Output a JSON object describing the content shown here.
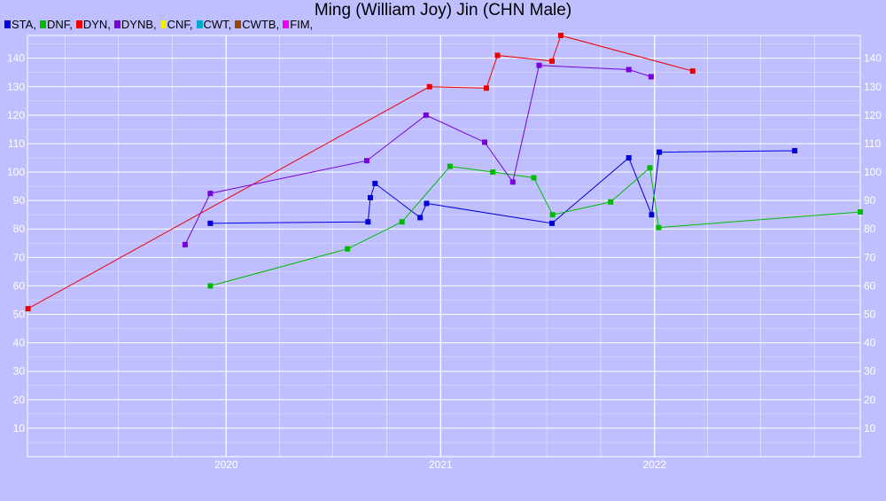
{
  "title": "Ming (William Joy) Jin (CHN Male)",
  "colors": {
    "background": "#bfbfff",
    "grid": "#ffffff"
  },
  "chart_data": {
    "type": "line",
    "title": "Ming (William Joy) Jin (CHN Male)",
    "xlabel": "",
    "ylabel": "",
    "xlim": [
      "2019-01-27",
      "2022-12-18"
    ],
    "ylim": [
      0,
      148
    ],
    "x_ticks": [
      {
        "label": "2020",
        "date": "2020-01-01"
      },
      {
        "label": "2021",
        "date": "2021-01-01"
      },
      {
        "label": "2022",
        "date": "2022-01-01"
      }
    ],
    "y_ticks": [
      10,
      20,
      30,
      40,
      50,
      60,
      70,
      80,
      90,
      100,
      110,
      120,
      130,
      140
    ],
    "grid": true,
    "legend_position": "top-left",
    "legend": [
      {
        "name": "STA",
        "color": "#0000dd"
      },
      {
        "name": "DNF",
        "color": "#00bb00"
      },
      {
        "name": "DYN",
        "color": "#ee0000"
      },
      {
        "name": "DYNB",
        "color": "#7700dd"
      },
      {
        "name": "CNF",
        "color": "#eeee00"
      },
      {
        "name": "CWT",
        "color": "#00aacc"
      },
      {
        "name": "CWTB",
        "color": "#994400"
      },
      {
        "name": "FIM",
        "color": "#ee00ee"
      }
    ],
    "series": [
      {
        "name": "STA",
        "color": "#0000dd",
        "points": [
          {
            "x": "2019-12-05",
            "y": 82
          },
          {
            "x": "2020-08-30",
            "y": 82.5
          },
          {
            "x": "2020-09-03",
            "y": 91
          },
          {
            "x": "2020-09-11",
            "y": 96
          },
          {
            "x": "2020-11-27",
            "y": 84
          },
          {
            "x": "2020-12-08",
            "y": 89
          },
          {
            "x": "2021-07-10",
            "y": 82
          },
          {
            "x": "2021-11-18",
            "y": 105
          },
          {
            "x": "2021-12-27",
            "y": 85
          },
          {
            "x": "2022-01-09",
            "y": 107
          },
          {
            "x": "2022-08-28",
            "y": 107.5
          }
        ]
      },
      {
        "name": "DNF",
        "color": "#00bb00",
        "points": [
          {
            "x": "2019-12-05",
            "y": 60
          },
          {
            "x": "2020-07-26",
            "y": 73
          },
          {
            "x": "2020-10-27",
            "y": 82.5
          },
          {
            "x": "2021-01-17",
            "y": 102
          },
          {
            "x": "2021-03-31",
            "y": 100
          },
          {
            "x": "2021-06-09",
            "y": 98
          },
          {
            "x": "2021-07-11",
            "y": 85
          },
          {
            "x": "2021-10-18",
            "y": 89.5
          },
          {
            "x": "2021-12-24",
            "y": 101.5
          },
          {
            "x": "2022-01-08",
            "y": 80.5
          },
          {
            "x": "2022-12-18",
            "y": 86
          }
        ]
      },
      {
        "name": "DYN",
        "color": "#ee0000",
        "points": [
          {
            "x": "2019-01-28",
            "y": 52
          },
          {
            "x": "2020-12-13",
            "y": 130
          },
          {
            "x": "2021-03-20",
            "y": 129.5
          },
          {
            "x": "2021-04-08",
            "y": 141
          },
          {
            "x": "2021-07-10",
            "y": 139
          },
          {
            "x": "2021-07-25",
            "y": 148
          },
          {
            "x": "2022-03-07",
            "y": 135.5
          }
        ]
      },
      {
        "name": "DYNB",
        "color": "#7700dd",
        "points": [
          {
            "x": "2019-10-23",
            "y": 74.5
          },
          {
            "x": "2019-12-05",
            "y": 92.5
          },
          {
            "x": "2020-08-28",
            "y": 104
          },
          {
            "x": "2020-12-07",
            "y": 120
          },
          {
            "x": "2021-03-17",
            "y": 110.5
          },
          {
            "x": "2021-05-04",
            "y": 96.5
          },
          {
            "x": "2021-06-18",
            "y": 137.5
          },
          {
            "x": "2021-11-18",
            "y": 136
          },
          {
            "x": "2021-12-26",
            "y": 133.5
          }
        ]
      }
    ]
  }
}
